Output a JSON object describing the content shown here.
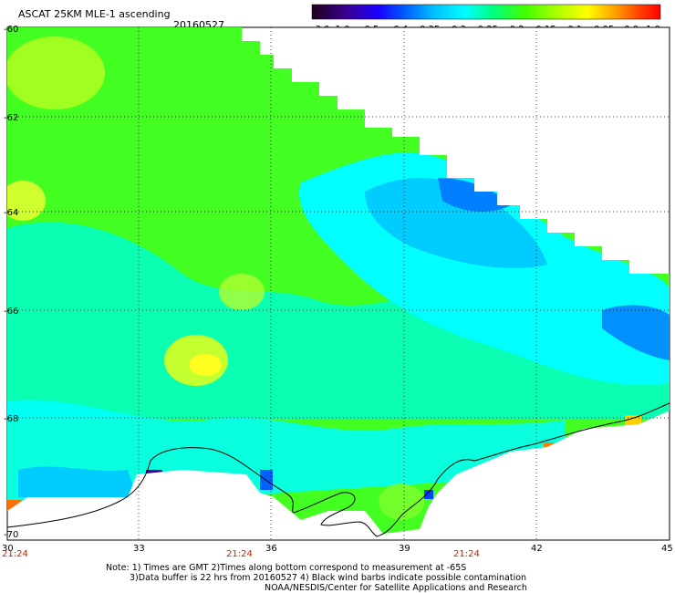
{
  "header": {
    "title": "ASCAT 25KM MLE-1 ascending",
    "date": "20160527"
  },
  "colorbar": {
    "labels": [
      "-3.0",
      "-1.0",
      "-0.5",
      "-0.4",
      "-0.35",
      "-0.3",
      "-0.25",
      "-0.2",
      "-0.15",
      "-0.1",
      "-0.05",
      "0.0",
      "1.0"
    ],
    "colors": [
      "#2a0030",
      "#3d00a0",
      "#0000ff",
      "#0050ff",
      "#00a0ff",
      "#00ffff",
      "#00ff90",
      "#40ff00",
      "#a0ff00",
      "#ffff00",
      "#ffb000",
      "#ff5000",
      "#ff0000"
    ]
  },
  "axes": {
    "lat_labels": [
      "-60",
      "-62",
      "-64",
      "-66",
      "-68",
      "-70"
    ],
    "lon_labels": [
      "30",
      "33",
      "36",
      "39",
      "42",
      "45"
    ]
  },
  "times": [
    "21:24",
    "21:24",
    "21:24"
  ],
  "notes": {
    "line1": "Note: 1) Times are GMT 2)Times along bottom correspond to measurement at -65S",
    "line2": "3)Data buffer is 22 hrs from 20160527 4) Black wind barbs indicate possible contamination",
    "line3": "NOAA/NESDIS/Center for Satellite Applications and Research"
  }
}
